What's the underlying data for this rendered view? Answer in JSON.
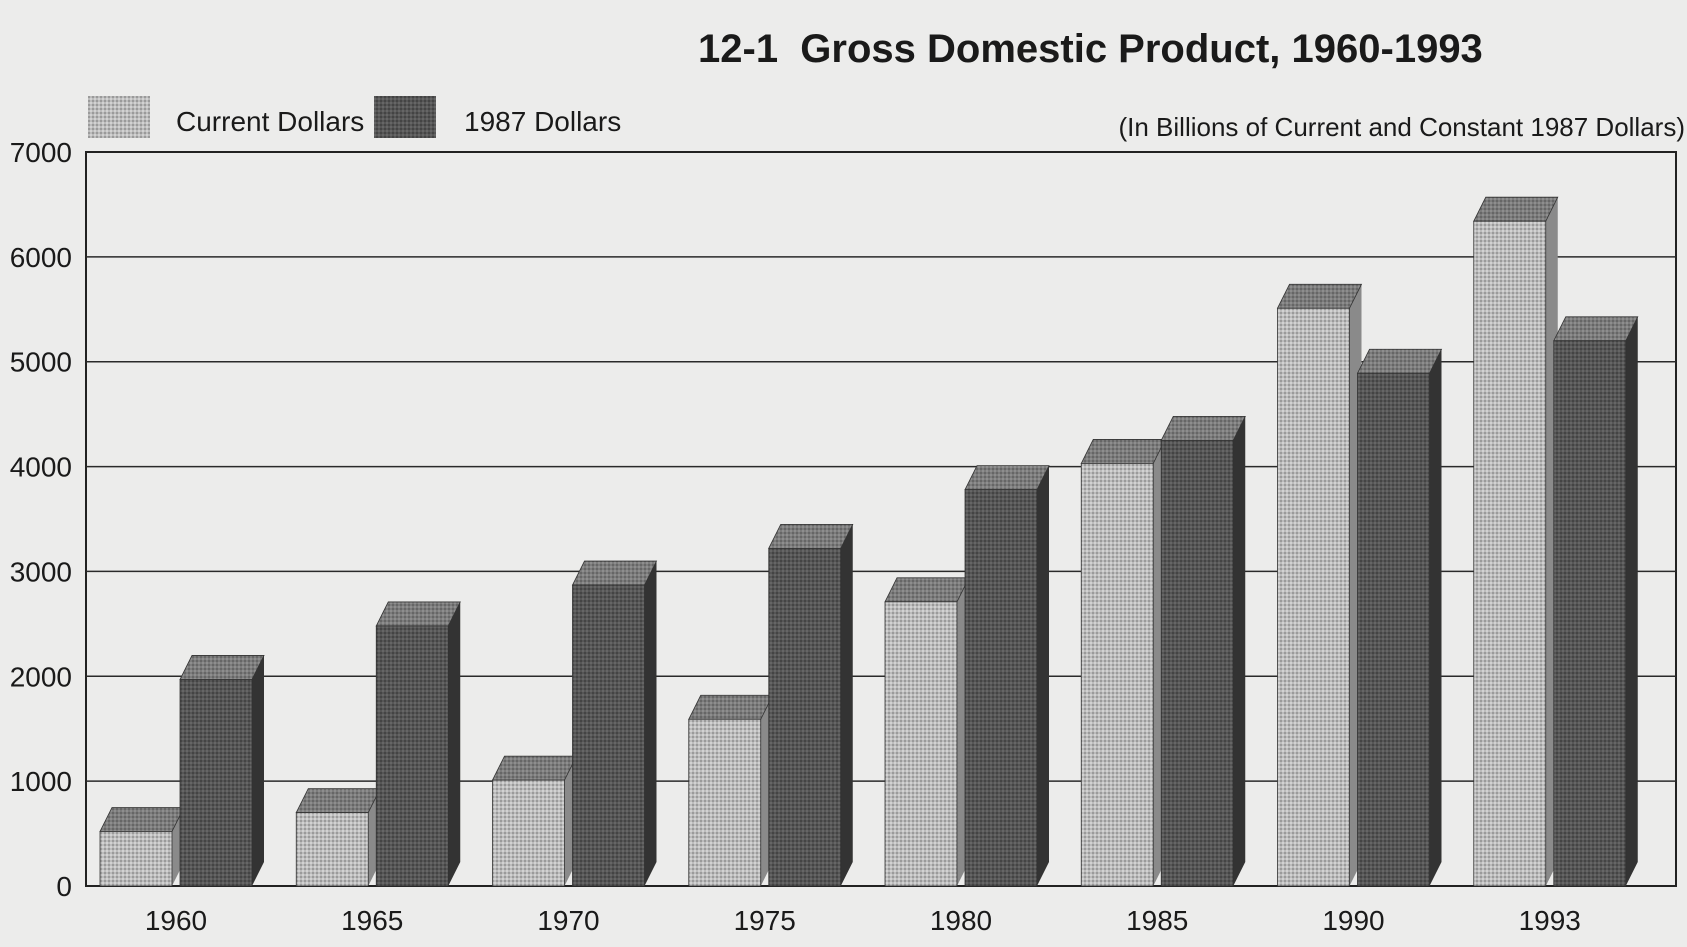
{
  "chart_data": {
    "type": "bar",
    "title": "12-1  Gross Domestic Product, 1960-1993",
    "subtitle": "(In Billions of Current and Constant 1987 Dollars)",
    "categories": [
      "1960",
      "1965",
      "1970",
      "1975",
      "1980",
      "1985",
      "1990",
      "1993"
    ],
    "series": [
      {
        "name": "Current Dollars",
        "values": [
          520,
          700,
          1010,
          1590,
          2710,
          4030,
          5510,
          6340
        ],
        "color": "#b4b4b4"
      },
      {
        "name": "1987 Dollars",
        "values": [
          1970,
          2480,
          2870,
          3220,
          3780,
          4250,
          4890,
          5200
        ],
        "color": "#4f4f4f"
      }
    ],
    "y_ticks": [
      "0",
      "1000",
      "2000",
      "3000",
      "4000",
      "5000",
      "6000",
      "7000"
    ],
    "ylim": [
      0,
      7000
    ],
    "grid": true,
    "legend": "top-left"
  }
}
